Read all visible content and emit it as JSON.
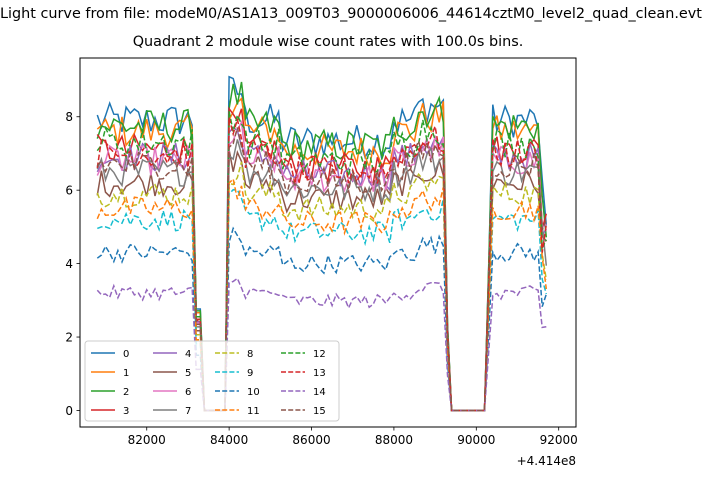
{
  "figure": {
    "suptitle": "Light curve from file: modeM0/AS1A13_009T03_9000006006_44614cztM0_level2_quad_clean.evt",
    "title": "Quadrant 2 module wise count rates with 100.0s bins.",
    "x_offset_label": "+4.414e8"
  },
  "chart_data": {
    "type": "line",
    "title": "Quadrant 2 module wise count rates with 100.0s bins.",
    "xlabel": "",
    "ylabel": "",
    "xlim": [
      80380,
      92420
    ],
    "ylim": [
      -0.45,
      9.6
    ],
    "x_offset": 441400000,
    "x_ticks": [
      82000,
      84000,
      86000,
      88000,
      90000,
      92000
    ],
    "x_tick_labels": [
      "82000",
      "84000",
      "86000",
      "88000",
      "90000",
      "92000"
    ],
    "y_ticks": [
      0,
      2,
      4,
      6,
      8
    ],
    "y_tick_labels": [
      "0",
      "2",
      "4",
      "6",
      "8"
    ],
    "grid": false,
    "legend_position": "lower-left",
    "legend_columns": 4,
    "time_range": [
      80800,
      91720
    ],
    "bin_seconds": 100,
    "gaps": [
      [
        83300,
        83950
      ],
      [
        89350,
        90250
      ]
    ],
    "series": [
      {
        "name": "0",
        "color": "#1f77b4",
        "dash": "solid",
        "level": 7.9
      },
      {
        "name": "1",
        "color": "#ff7f0e",
        "dash": "solid",
        "level": 7.6
      },
      {
        "name": "2",
        "color": "#2ca02c",
        "dash": "solid",
        "level": 7.75
      },
      {
        "name": "3",
        "color": "#d62728",
        "dash": "solid",
        "level": 7.1
      },
      {
        "name": "4",
        "color": "#9467bd",
        "dash": "solid",
        "level": 6.9
      },
      {
        "name": "5",
        "color": "#8c564b",
        "dash": "solid",
        "level": 6.2
      },
      {
        "name": "6",
        "color": "#e377c2",
        "dash": "solid",
        "level": 6.8
      },
      {
        "name": "7",
        "color": "#7f7f7f",
        "dash": "solid",
        "level": 6.5
      },
      {
        "name": "8",
        "color": "#bcbd22",
        "dash": "dashed",
        "level": 5.9
      },
      {
        "name": "9",
        "color": "#17becf",
        "dash": "dashed",
        "level": 5.2
      },
      {
        "name": "10",
        "color": "#1f77b4",
        "dash": "dashed",
        "level": 4.3
      },
      {
        "name": "11",
        "color": "#ff7f0e",
        "dash": "dashed",
        "level": 5.5
      },
      {
        "name": "12",
        "color": "#2ca02c",
        "dash": "dashed",
        "level": 7.3
      },
      {
        "name": "13",
        "color": "#d62728",
        "dash": "dashed",
        "level": 7.0
      },
      {
        "name": "14",
        "color": "#9467bd",
        "dash": "dashed",
        "level": 3.2
      },
      {
        "name": "15",
        "color": "#8c564b",
        "dash": "dashed",
        "level": 6.7
      }
    ]
  }
}
